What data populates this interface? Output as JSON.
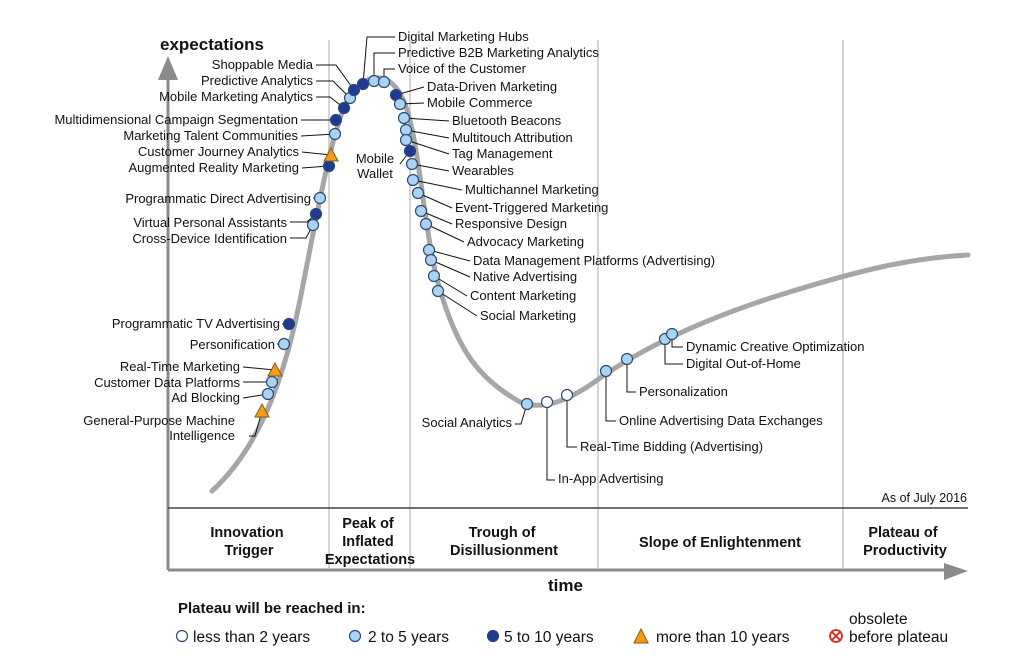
{
  "axes": {
    "y_label": "expectations",
    "x_label": "time"
  },
  "as_of": "As of July 2016",
  "phases": [
    {
      "lines": [
        "Innovation",
        "Trigger"
      ]
    },
    {
      "lines": [
        "Peak of",
        "Inflated",
        "Expectations"
      ]
    },
    {
      "lines": [
        "Trough of",
        "Disillusionment"
      ]
    },
    {
      "lines": [
        "Slope of Enlightenment"
      ]
    },
    {
      "lines": [
        "Plateau of",
        "Productivity"
      ]
    }
  ],
  "legend": {
    "title": "Plateau will be reached in:",
    "items": [
      {
        "marker": "white-circle",
        "label": "less than 2 years"
      },
      {
        "marker": "light-blue-circle",
        "label": "2 to 5 years"
      },
      {
        "marker": "dark-blue-circle",
        "label": "5 to 10 years"
      },
      {
        "marker": "orange-triangle",
        "label": "more than 10 years"
      },
      {
        "marker": "red-crossed-circle",
        "label_top": "obsolete",
        "label": "before plateau"
      }
    ]
  },
  "colors": {
    "curve": "#a6a6a6",
    "white": "#ffffff",
    "light_blue": "#a9d3f0",
    "dark_blue": "#1f3a93",
    "orange": "#f29b1c",
    "red": "#e02424",
    "axis": "#8a8a8a",
    "marker_outline": "#2c4a78"
  },
  "technologies": [
    {
      "name": "General-Purpose Machine Intelligence",
      "lines": [
        "General-Purpose Machine",
        "Intelligence"
      ],
      "category": "more than 10 years"
    },
    {
      "name": "Ad Blocking",
      "category": "2 to 5 years"
    },
    {
      "name": "Customer Data Platforms",
      "category": "2 to 5 years"
    },
    {
      "name": "Real-Time Marketing",
      "category": "more than 10 years"
    },
    {
      "name": "Personification",
      "category": "2 to 5 years"
    },
    {
      "name": "Programmatic TV Advertising",
      "category": "5 to 10 years"
    },
    {
      "name": "Cross-Device Identification",
      "category": "2 to 5 years"
    },
    {
      "name": "Virtual Personal Assistants",
      "category": "5 to 10 years"
    },
    {
      "name": "Programmatic Direct Advertising",
      "category": "2 to 5 years"
    },
    {
      "name": "Augmented Reality Marketing",
      "category": "5 to 10 years"
    },
    {
      "name": "Customer Journey Analytics",
      "category": "more than 10 years"
    },
    {
      "name": "Marketing Talent Communities",
      "category": "2 to 5 years"
    },
    {
      "name": "Multidimensional Campaign Segmentation",
      "category": "5 to 10 years"
    },
    {
      "name": "Mobile Marketing Analytics",
      "category": "5 to 10 years"
    },
    {
      "name": "Predictive Analytics",
      "category": "2 to 5 years"
    },
    {
      "name": "Shoppable Media",
      "category": "5 to 10 years"
    },
    {
      "name": "Digital Marketing Hubs",
      "category": "5 to 10 years"
    },
    {
      "name": "Predictive B2B Marketing Analytics",
      "category": "2 to 5 years"
    },
    {
      "name": "Voice of the Customer",
      "category": "2 to 5 years"
    },
    {
      "name": "Data-Driven Marketing",
      "category": "5 to 10 years"
    },
    {
      "name": "Mobile Commerce",
      "category": "2 to 5 years"
    },
    {
      "name": "Bluetooth Beacons",
      "category": "2 to 5 years"
    },
    {
      "name": "Multitouch Attribution",
      "category": "2 to 5 years"
    },
    {
      "name": "Tag Management",
      "category": "2 to 5 years"
    },
    {
      "name": "Mobile Wallet",
      "lines": [
        "Mobile",
        "Wallet"
      ],
      "category": "5 to 10 years"
    },
    {
      "name": "Wearables",
      "category": "2 to 5 years"
    },
    {
      "name": "Multichannel Marketing",
      "category": "2 to 5 years"
    },
    {
      "name": "Event-Triggered Marketing",
      "category": "2 to 5 years"
    },
    {
      "name": "Responsive Design",
      "category": "2 to 5 years"
    },
    {
      "name": "Advocacy Marketing",
      "category": "2 to 5 years"
    },
    {
      "name": "Data Management Platforms (Advertising)",
      "category": "2 to 5 years"
    },
    {
      "name": "Native Advertising",
      "category": "2 to 5 years"
    },
    {
      "name": "Content Marketing",
      "category": "2 to 5 years"
    },
    {
      "name": "Social Marketing",
      "category": "2 to 5 years"
    },
    {
      "name": "Social Analytics",
      "category": "2 to 5 years"
    },
    {
      "name": "In-App Advertising",
      "category": "less than 2 years"
    },
    {
      "name": "Real-Time Bidding (Advertising)",
      "category": "less than 2 years"
    },
    {
      "name": "Online Advertising Data Exchanges",
      "category": "2 to 5 years"
    },
    {
      "name": "Personalization",
      "category": "2 to 5 years"
    },
    {
      "name": "Digital Out-of-Home",
      "category": "2 to 5 years"
    },
    {
      "name": "Dynamic Creative Optimization",
      "category": "2 to 5 years"
    }
  ]
}
